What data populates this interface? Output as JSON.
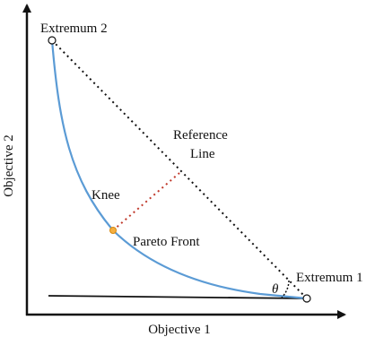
{
  "axes": {
    "x_label": "Objective 1",
    "y_label": "Objective 2"
  },
  "labels": {
    "extremum_2": "Extremum 2",
    "extremum_1": "Extremum 1",
    "reference_line": [
      "Reference",
      "Line"
    ],
    "knee": "Knee",
    "pareto_front": "Pareto Front",
    "angle": "θ"
  }
}
